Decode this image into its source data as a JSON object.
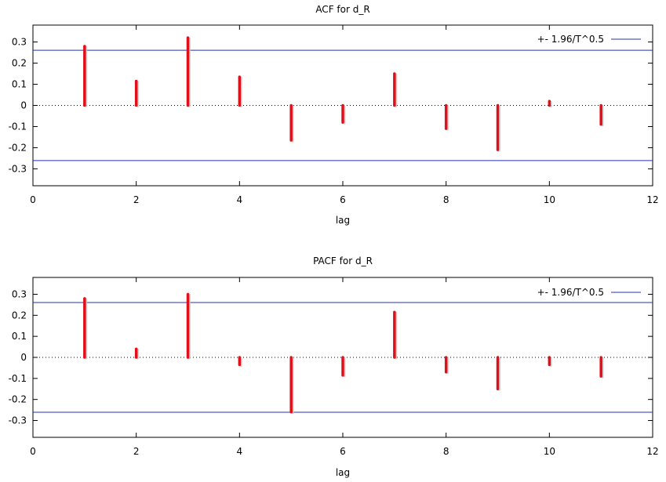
{
  "chart_data": [
    {
      "type": "bar",
      "title": "ACF for d_R",
      "xlabel": "lag",
      "ylabel": "",
      "xlim": [
        0,
        12
      ],
      "ylim": [
        -0.38,
        0.38
      ],
      "x_ticks": [
        0,
        2,
        4,
        6,
        8,
        10,
        12
      ],
      "x_tick_labels": [
        "0",
        "2",
        "4",
        "6",
        "8",
        "10",
        "12"
      ],
      "y_ticks": [
        0.3,
        0.2,
        0.1,
        0,
        -0.1,
        -0.2,
        -0.3
      ],
      "y_tick_labels": [
        "0.3",
        "0.2",
        "0.1",
        "0",
        "-0.1",
        "-0.2",
        "-0.3"
      ],
      "legend_label": "+- 1.96/T^0.5",
      "legend_position": "top-right",
      "bound": 0.261,
      "x": [
        1,
        2,
        3,
        4,
        5,
        6,
        7,
        8,
        9,
        10,
        11
      ],
      "values": [
        0.28,
        0.115,
        0.32,
        0.135,
        -0.165,
        -0.08,
        0.15,
        -0.11,
        -0.21,
        0.02,
        -0.09
      ],
      "bar_color": "#e0101a",
      "bound_color": "#2430b0"
    },
    {
      "type": "bar",
      "title": "PACF for d_R",
      "xlabel": "lag",
      "ylabel": "",
      "xlim": [
        0,
        12
      ],
      "ylim": [
        -0.38,
        0.38
      ],
      "x_ticks": [
        0,
        2,
        4,
        6,
        8,
        10,
        12
      ],
      "x_tick_labels": [
        "0",
        "2",
        "4",
        "6",
        "8",
        "10",
        "12"
      ],
      "y_ticks": [
        0.3,
        0.2,
        0.1,
        0,
        -0.1,
        -0.2,
        -0.3
      ],
      "y_tick_labels": [
        "0.3",
        "0.2",
        "0.1",
        "0",
        "-0.1",
        "-0.2",
        "-0.3"
      ],
      "legend_label": "+- 1.96/T^0.5",
      "legend_position": "top-right",
      "bound": 0.261,
      "x": [
        1,
        2,
        3,
        4,
        5,
        6,
        7,
        8,
        9,
        10,
        11
      ],
      "values": [
        0.28,
        0.04,
        0.3,
        -0.035,
        -0.26,
        -0.085,
        0.215,
        -0.07,
        -0.15,
        -0.035,
        -0.09
      ],
      "bar_color": "#e0101a",
      "bound_color": "#2430b0"
    }
  ]
}
